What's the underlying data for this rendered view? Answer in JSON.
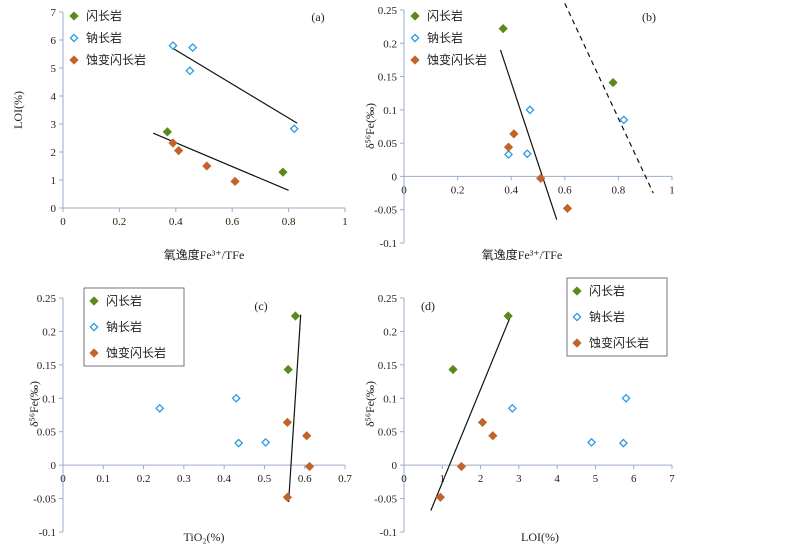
{
  "figure": {
    "legend_labels": [
      "闪长岩",
      "钠长岩",
      "蚀变闪长岩"
    ],
    "colors": {
      "diorite": "#5a8a1e",
      "albitite": "#2e9be0",
      "altered_diorite": "#c0642a",
      "axis": "#9aaec8",
      "line": "#111111"
    }
  },
  "chart_data": [
    {
      "id": "a",
      "type": "scatter",
      "panel_label": "(a)",
      "xlabel": "氧逸度Fe³⁺/TFe",
      "ylabel": "LOI(%)",
      "xlim": [
        0,
        1
      ],
      "ylim": [
        0,
        7
      ],
      "xticks": [
        "0",
        "0.2",
        "0.4",
        "0.6",
        "0.8",
        "1"
      ],
      "yticks": [
        "0",
        "1",
        "2",
        "3",
        "4",
        "5",
        "6",
        "7"
      ],
      "legend_position": "top-left",
      "series": [
        {
          "name": "闪长岩",
          "marker": "diamond-filled",
          "color_key": "diorite",
          "points": [
            [
              0.37,
              2.72
            ],
            [
              0.78,
              1.28
            ]
          ]
        },
        {
          "name": "钠长岩",
          "marker": "diamond-open",
          "color_key": "albitite",
          "points": [
            [
              0.39,
              5.8
            ],
            [
              0.46,
              5.73
            ],
            [
              0.45,
              4.9
            ],
            [
              0.82,
              2.83
            ]
          ]
        },
        {
          "name": "蚀变闪长岩",
          "marker": "diamond-filled",
          "color_key": "altered_diorite",
          "points": [
            [
              0.39,
              2.32
            ],
            [
              0.41,
              2.05
            ],
            [
              0.51,
              1.5
            ],
            [
              0.61,
              0.95
            ]
          ]
        }
      ],
      "trendlines": [
        {
          "style": "solid",
          "from": [
            0.39,
            5.7
          ],
          "to": [
            0.83,
            3.03
          ]
        },
        {
          "style": "solid",
          "from": [
            0.32,
            2.67
          ],
          "to": [
            0.8,
            0.63
          ]
        }
      ]
    },
    {
      "id": "b",
      "type": "scatter",
      "panel_label": "(b)",
      "xlabel": "氧逸度Fe³⁺/TFe",
      "ylabel": "δ⁵⁶Fe(‰)",
      "xlim": [
        0,
        1
      ],
      "ylim": [
        -0.1,
        0.25
      ],
      "xticks": [
        "0",
        "0.2",
        "0.4",
        "0.6",
        "0.8",
        "1"
      ],
      "yticks": [
        "-0.1",
        "-0.05",
        "0",
        "0.05",
        "0.1",
        "0.15",
        "0.2",
        "0.25"
      ],
      "legend_position": "top-left",
      "series": [
        {
          "name": "闪长岩",
          "marker": "diamond-filled",
          "color_key": "diorite",
          "points": [
            [
              0.37,
              0.222
            ],
            [
              0.78,
              0.141
            ]
          ]
        },
        {
          "name": "钠长岩",
          "marker": "diamond-open",
          "color_key": "albitite",
          "points": [
            [
              0.39,
              0.033
            ],
            [
              0.46,
              0.034
            ],
            [
              0.47,
              0.1
            ],
            [
              0.82,
              0.085
            ]
          ]
        },
        {
          "name": "蚀变闪长岩",
          "marker": "diamond-filled",
          "color_key": "altered_diorite",
          "points": [
            [
              0.39,
              0.044
            ],
            [
              0.41,
              0.064
            ],
            [
              0.51,
              -0.003
            ],
            [
              0.61,
              -0.048
            ]
          ]
        }
      ],
      "trendlines": [
        {
          "style": "solid",
          "from": [
            0.36,
            0.19
          ],
          "to": [
            0.57,
            -0.065
          ]
        },
        {
          "style": "dashed",
          "from": [
            0.6,
            0.26
          ],
          "to": [
            0.93,
            -0.025
          ]
        }
      ]
    },
    {
      "id": "c",
      "type": "scatter",
      "panel_label": "(c)",
      "xlabel": "TiO₂(%)",
      "ylabel": "δ⁵⁶Fe(‰)",
      "xlim": [
        0,
        0.7
      ],
      "ylim": [
        -0.1,
        0.25
      ],
      "xticks": [
        "0",
        "0.1",
        "0.2",
        "0.3",
        "0.4",
        "0.5",
        "0.6",
        "0.7"
      ],
      "yticks": [
        "-0.1",
        "-0.05",
        "0",
        "0.05",
        "0.1",
        "0.15",
        "0.2",
        "0.25"
      ],
      "legend_position": "top-left",
      "series": [
        {
          "name": "闪长岩",
          "marker": "diamond-filled",
          "color_key": "diorite",
          "points": [
            [
              0.577,
              0.223
            ],
            [
              0.559,
              0.143
            ]
          ]
        },
        {
          "name": "钠长岩",
          "marker": "diamond-open",
          "color_key": "albitite",
          "points": [
            [
              0.24,
              0.085
            ],
            [
              0.43,
              0.1
            ],
            [
              0.436,
              0.033
            ],
            [
              0.503,
              0.034
            ]
          ]
        },
        {
          "name": "蚀变闪长岩",
          "marker": "diamond-filled",
          "color_key": "altered_diorite",
          "points": [
            [
              0.557,
              0.064
            ],
            [
              0.605,
              0.044
            ],
            [
              0.612,
              -0.002
            ],
            [
              0.557,
              -0.048
            ]
          ]
        }
      ],
      "trendlines": [
        {
          "style": "solid",
          "from": [
            0.59,
            0.225
          ],
          "to": [
            0.56,
            -0.055
          ]
        }
      ]
    },
    {
      "id": "d",
      "type": "scatter",
      "panel_label": "(d)",
      "xlabel": "LOI(%)",
      "ylabel": "δ⁵⁶Fe(‰)",
      "xlim": [
        0,
        7
      ],
      "ylim": [
        -0.1,
        0.25
      ],
      "xticks": [
        "0",
        "1",
        "2",
        "3",
        "4",
        "5",
        "6",
        "7"
      ],
      "yticks": [
        "-0.1",
        "-0.05",
        "0",
        "0.05",
        "0.1",
        "0.15",
        "0.2",
        "0.25"
      ],
      "legend_position": "top-right",
      "series": [
        {
          "name": "闪长岩",
          "marker": "diamond-filled",
          "color_key": "diorite",
          "points": [
            [
              2.72,
              0.223
            ],
            [
              1.28,
              0.143
            ]
          ]
        },
        {
          "name": "钠长岩",
          "marker": "diamond-open",
          "color_key": "albitite",
          "points": [
            [
              2.83,
              0.085
            ],
            [
              5.8,
              0.1
            ],
            [
              4.9,
              0.034
            ],
            [
              5.73,
              0.033
            ]
          ]
        },
        {
          "name": "蚀变闪长岩",
          "marker": "diamond-filled",
          "color_key": "altered_diorite",
          "points": [
            [
              2.05,
              0.064
            ],
            [
              2.32,
              0.044
            ],
            [
              1.5,
              -0.002
            ],
            [
              0.95,
              -0.048
            ]
          ]
        }
      ],
      "trendlines": [
        {
          "style": "solid",
          "from": [
            0.7,
            -0.068
          ],
          "to": [
            2.8,
            0.225
          ]
        }
      ]
    }
  ]
}
